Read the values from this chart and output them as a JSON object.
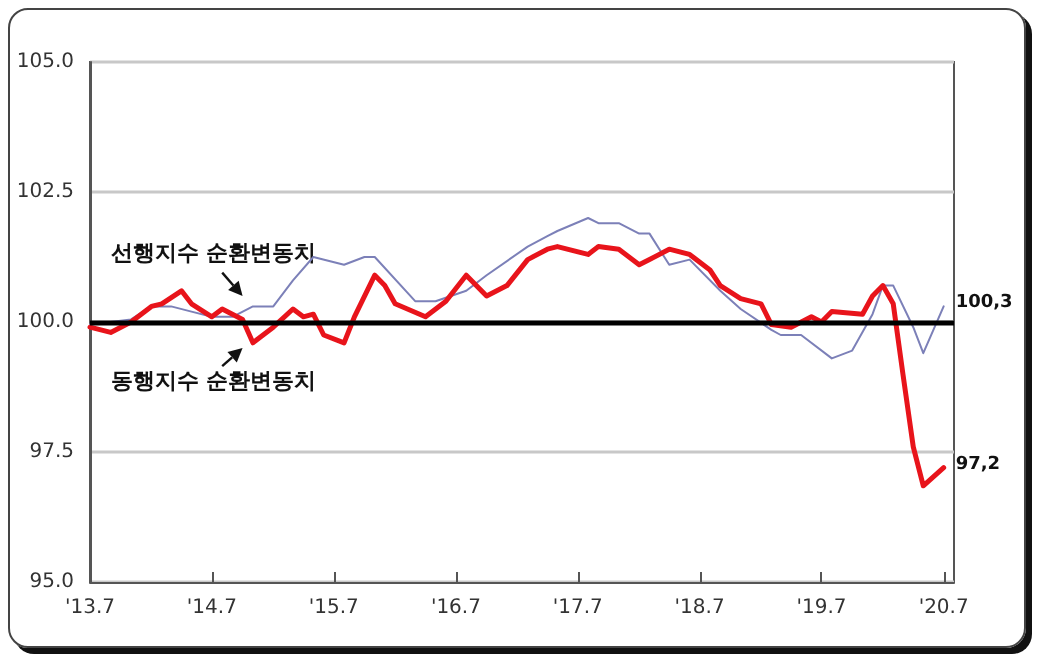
{
  "chart_data": {
    "type": "line",
    "xlim": [
      "2013-07",
      "2020-08"
    ],
    "xticks": [
      {
        "value": "2013-07",
        "label": "'13.7"
      },
      {
        "value": "2014-07",
        "label": "'14.7"
      },
      {
        "value": "2015-07",
        "label": "'15.7"
      },
      {
        "value": "2016-07",
        "label": "'16.7"
      },
      {
        "value": "2017-07",
        "label": "'17.7"
      },
      {
        "value": "2018-07",
        "label": "'18.7"
      },
      {
        "value": "2019-07",
        "label": "'19.7"
      },
      {
        "value": "2020-07",
        "label": "'20.7"
      }
    ],
    "ylim": [
      95,
      105
    ],
    "yticks": [
      {
        "value": 95,
        "label": "95.0"
      },
      {
        "value": 97.5,
        "label": "97.5"
      },
      {
        "value": 100,
        "label": "100.0"
      },
      {
        "value": 102.5,
        "label": "102.5"
      },
      {
        "value": 105,
        "label": "105.0"
      }
    ],
    "grid": "y",
    "legend": false,
    "marker": "none",
    "line_style": "solid",
    "series": [
      {
        "name": "선행지수 순환변동치",
        "color": "#7c80b8",
        "x": [
          "2013-07",
          "2013-11",
          "2014-01",
          "2014-03",
          "2014-05",
          "2014-07",
          "2014-09",
          "2014-11",
          "2015-01",
          "2015-03",
          "2015-05",
          "2015-08",
          "2015-10",
          "2015-11",
          "2016-03",
          "2016-05",
          "2016-08",
          "2016-10",
          "2017-02",
          "2017-04",
          "2017-05",
          "2017-08",
          "2017-09",
          "2017-11",
          "2018-01",
          "2018-02",
          "2018-04",
          "2018-06",
          "2018-09",
          "2018-11",
          "2019-02",
          "2019-03",
          "2019-05",
          "2019-08",
          "2019-10",
          "2019-12",
          "2020-01",
          "2020-02",
          "2020-04",
          "2020-05",
          "2020-07"
        ],
        "values": [
          99.95,
          100.05,
          100.3,
          100.3,
          100.2,
          100.1,
          100.1,
          100.3,
          100.3,
          100.8,
          101.25,
          101.1,
          101.25,
          101.25,
          100.4,
          100.4,
          100.6,
          100.9,
          101.45,
          101.65,
          101.75,
          102.0,
          101.9,
          101.9,
          101.7,
          101.7,
          101.1,
          101.2,
          100.6,
          100.25,
          99.85,
          99.75,
          99.75,
          99.3,
          99.45,
          100.15,
          100.7,
          100.7,
          99.9,
          99.4,
          100.3
        ]
      },
      {
        "name": "동행지수 순환변동치",
        "color": "#e8141b",
        "x": [
          "2013-07",
          "2013-09",
          "2013-11",
          "2014-01",
          "2014-02",
          "2014-04",
          "2014-05",
          "2014-07",
          "2014-08",
          "2014-10",
          "2014-11",
          "2015-01",
          "2015-03",
          "2015-04",
          "2015-05",
          "2015-06",
          "2015-08",
          "2015-09",
          "2015-11",
          "2015-12",
          "2016-01",
          "2016-04",
          "2016-06",
          "2016-08",
          "2016-10",
          "2016-12",
          "2017-02",
          "2017-04",
          "2017-05",
          "2017-08",
          "2017-09",
          "2017-11",
          "2018-01",
          "2018-02",
          "2018-04",
          "2018-06",
          "2018-08",
          "2018-09",
          "2018-11",
          "2019-01",
          "2019-02",
          "2019-04",
          "2019-06",
          "2019-07",
          "2019-08",
          "2019-11",
          "2019-12",
          "2020-01",
          "2020-02",
          "2020-03",
          "2020-04",
          "2020-05",
          "2020-07"
        ],
        "values": [
          99.9,
          99.8,
          100.0,
          100.3,
          100.35,
          100.6,
          100.35,
          100.1,
          100.25,
          100.05,
          99.6,
          99.9,
          100.25,
          100.1,
          100.15,
          99.75,
          99.6,
          100.1,
          100.9,
          100.7,
          100.35,
          100.1,
          100.4,
          100.9,
          100.5,
          100.7,
          101.2,
          101.4,
          101.45,
          101.3,
          101.45,
          101.4,
          101.1,
          101.2,
          101.4,
          101.3,
          101.0,
          100.7,
          100.45,
          100.35,
          99.95,
          99.9,
          100.1,
          100.0,
          100.2,
          100.15,
          100.5,
          100.7,
          100.35,
          99.0,
          97.6,
          96.85,
          97.2
        ]
      }
    ],
    "ref_lines": [
      {
        "axis": "y",
        "value": 100,
        "color": "#000000",
        "line_style": "solid"
      }
    ],
    "annotations": [
      {
        "text": "100,3",
        "x": "2020-07",
        "y": 100.3
      },
      {
        "text": "97,2",
        "x": "2020-07",
        "y": 97.2
      }
    ]
  }
}
